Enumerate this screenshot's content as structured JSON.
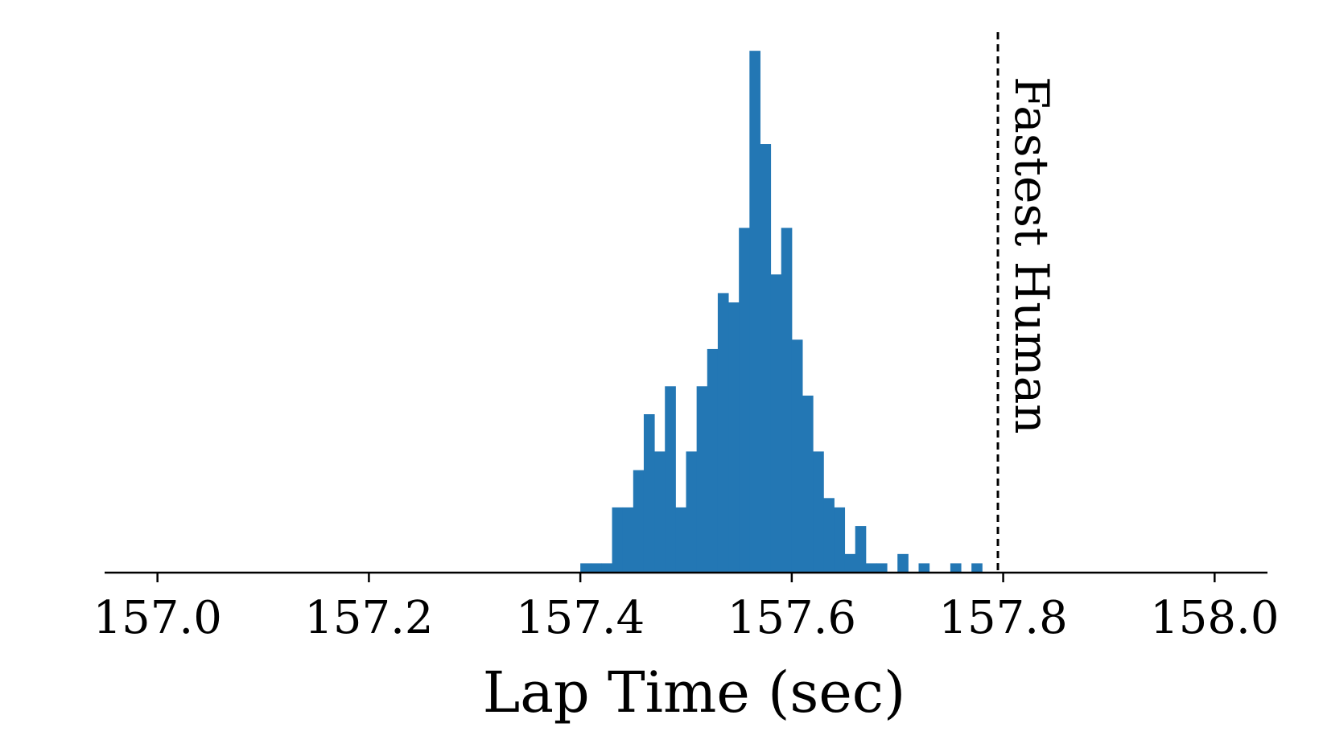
{
  "chart_data": {
    "type": "histogram",
    "title": "",
    "xlabel": "Lap Time (sec)",
    "ylabel": "",
    "xlim": [
      156.95,
      158.05
    ],
    "ylim": [
      0,
      58
    ],
    "x_ticks": [
      157.0,
      157.2,
      157.4,
      157.6,
      157.8,
      158.0
    ],
    "x_tick_labels": [
      "157.0",
      "157.2",
      "157.4",
      "157.6",
      "157.8",
      "158.0"
    ],
    "y_axis_visible": false,
    "grid": false,
    "bar_color": "#2377b4",
    "bin_width": 0.01,
    "bins": [
      {
        "x0": 157.4,
        "count": 1
      },
      {
        "x0": 157.41,
        "count": 1
      },
      {
        "x0": 157.42,
        "count": 1
      },
      {
        "x0": 157.43,
        "count": 7
      },
      {
        "x0": 157.44,
        "count": 7
      },
      {
        "x0": 157.45,
        "count": 11
      },
      {
        "x0": 157.46,
        "count": 17
      },
      {
        "x0": 157.47,
        "count": 13
      },
      {
        "x0": 157.48,
        "count": 20
      },
      {
        "x0": 157.49,
        "count": 7
      },
      {
        "x0": 157.5,
        "count": 13
      },
      {
        "x0": 157.51,
        "count": 20
      },
      {
        "x0": 157.52,
        "count": 24
      },
      {
        "x0": 157.53,
        "count": 30
      },
      {
        "x0": 157.54,
        "count": 29
      },
      {
        "x0": 157.55,
        "count": 37
      },
      {
        "x0": 157.56,
        "count": 56
      },
      {
        "x0": 157.57,
        "count": 46
      },
      {
        "x0": 157.58,
        "count": 32
      },
      {
        "x0": 157.59,
        "count": 37
      },
      {
        "x0": 157.6,
        "count": 25
      },
      {
        "x0": 157.61,
        "count": 19
      },
      {
        "x0": 157.62,
        "count": 13
      },
      {
        "x0": 157.63,
        "count": 8
      },
      {
        "x0": 157.64,
        "count": 7
      },
      {
        "x0": 157.65,
        "count": 2
      },
      {
        "x0": 157.66,
        "count": 5
      },
      {
        "x0": 157.67,
        "count": 1
      },
      {
        "x0": 157.68,
        "count": 1
      },
      {
        "x0": 157.7,
        "count": 2
      },
      {
        "x0": 157.72,
        "count": 1
      },
      {
        "x0": 157.75,
        "count": 1
      },
      {
        "x0": 157.77,
        "count": 1
      }
    ],
    "reference_line": {
      "x": 157.795,
      "style": "dashed",
      "color": "#000000",
      "label": "Fastest Human"
    }
  }
}
